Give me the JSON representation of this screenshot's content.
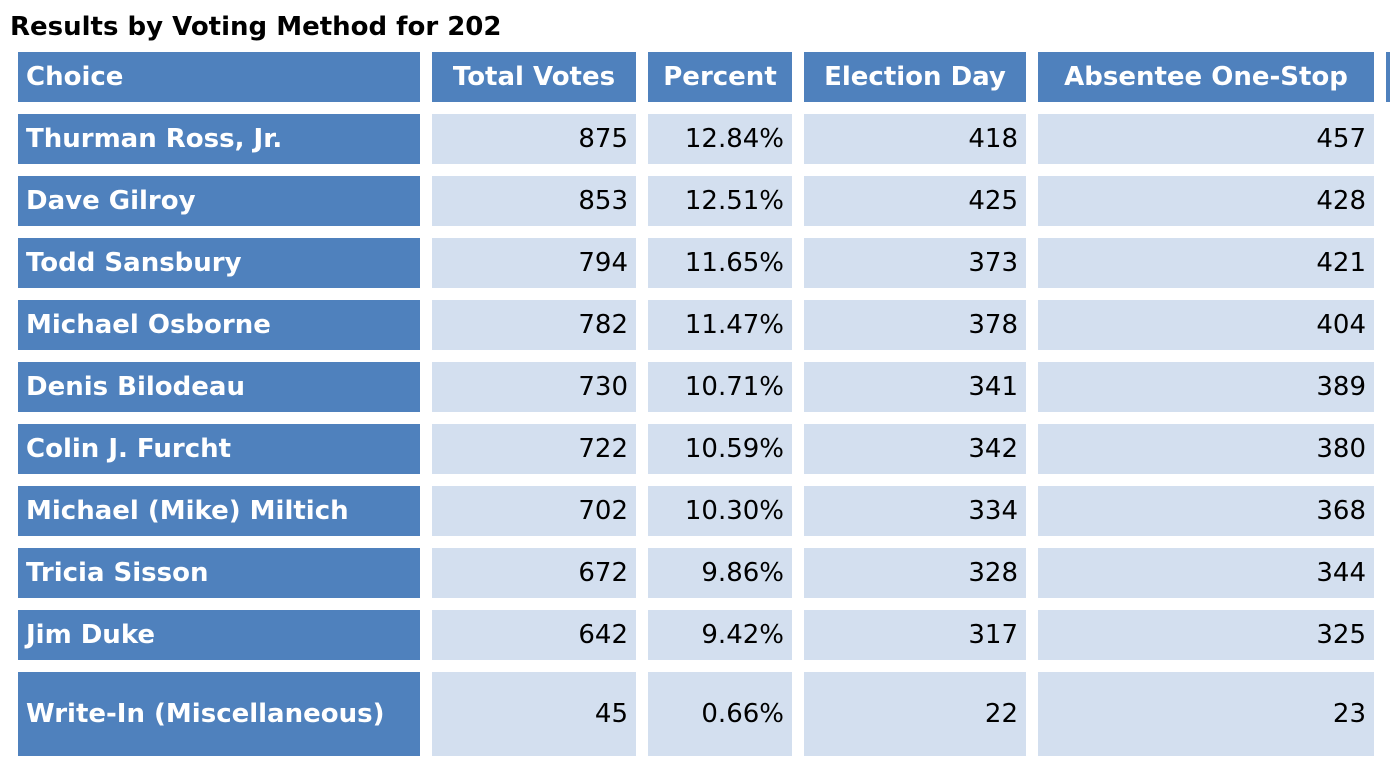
{
  "title": "Results by Voting Method for 202",
  "columns": [
    "Choice",
    "Total Votes",
    "Percent",
    "Election Day",
    "Absentee One-Stop"
  ],
  "rows": [
    {
      "choice": "Thurman Ross, Jr.",
      "total_votes": "875",
      "percent": "12.84%",
      "election_day": "418",
      "absentee_one_stop": "457"
    },
    {
      "choice": "Dave Gilroy",
      "total_votes": "853",
      "percent": "12.51%",
      "election_day": "425",
      "absentee_one_stop": "428"
    },
    {
      "choice": "Todd Sansbury",
      "total_votes": "794",
      "percent": "11.65%",
      "election_day": "373",
      "absentee_one_stop": "421"
    },
    {
      "choice": "Michael Osborne",
      "total_votes": "782",
      "percent": "11.47%",
      "election_day": "378",
      "absentee_one_stop": "404"
    },
    {
      "choice": "Denis Bilodeau",
      "total_votes": "730",
      "percent": "10.71%",
      "election_day": "341",
      "absentee_one_stop": "389"
    },
    {
      "choice": "Colin J. Furcht",
      "total_votes": "722",
      "percent": "10.59%",
      "election_day": "342",
      "absentee_one_stop": "380"
    },
    {
      "choice": "Michael (Mike) Miltich",
      "total_votes": "702",
      "percent": "10.30%",
      "election_day": "334",
      "absentee_one_stop": "368"
    },
    {
      "choice": "Tricia Sisson",
      "total_votes": "672",
      "percent": "9.86%",
      "election_day": "328",
      "absentee_one_stop": "344"
    },
    {
      "choice": "Jim Duke",
      "total_votes": "642",
      "percent": "9.42%",
      "election_day": "317",
      "absentee_one_stop": "325"
    },
    {
      "choice": "Write-In (Miscellaneous)",
      "total_votes": "45",
      "percent": "0.66%",
      "election_day": "22",
      "absentee_one_stop": "23"
    }
  ],
  "colors": {
    "header_bg": "#4f81bd",
    "cell_bg": "#d3dfef",
    "header_text": "#ffffff"
  }
}
